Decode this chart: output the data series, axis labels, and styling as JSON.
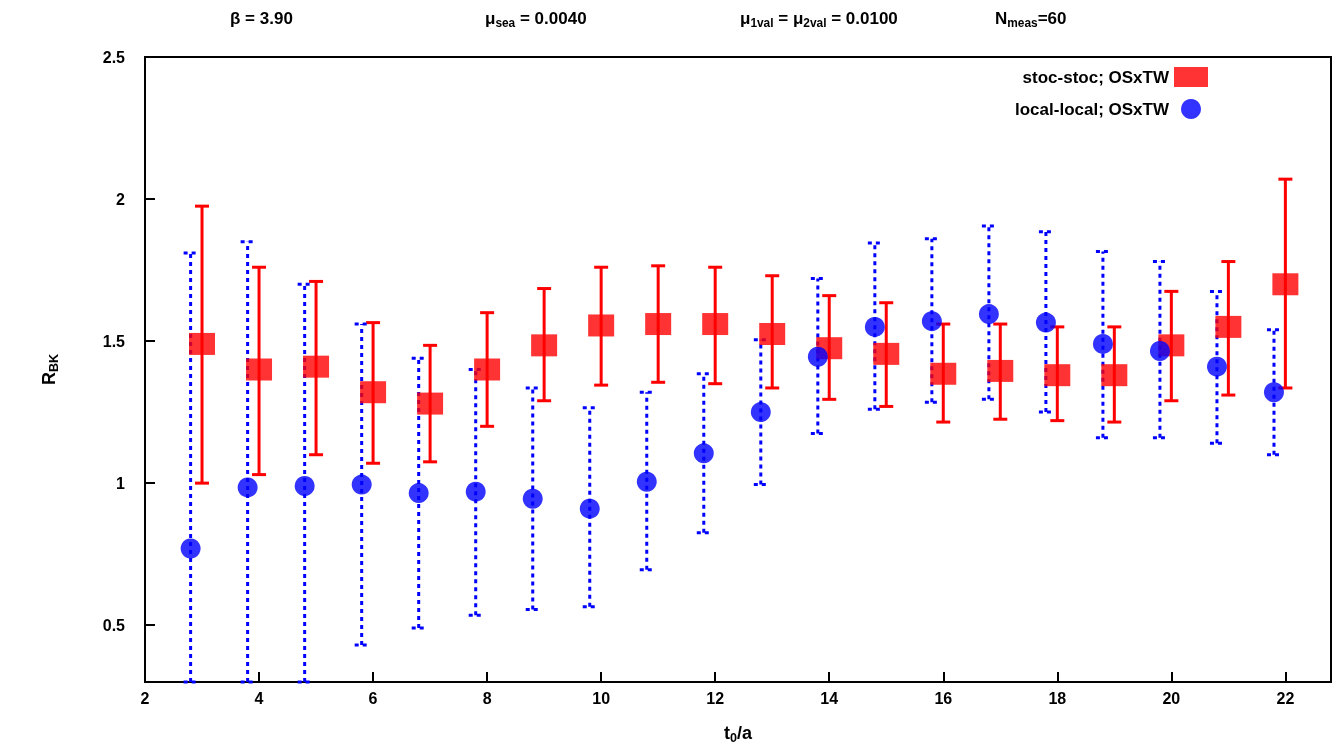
{
  "chart_data": {
    "type": "scatter",
    "annotations": [
      "β = 3.90",
      "μ$_{sea}$ = 0.0040",
      "μ$_{1val}$ = μ$_{2val}$ = 0.0100",
      "N$_{meas}$=60"
    ],
    "xlabel": "t$_{0}$/a",
    "ylabel": "R$_{BK}$",
    "xlim": [
      2,
      22.8
    ],
    "xticks": [
      2,
      4,
      6,
      8,
      10,
      12,
      14,
      16,
      18,
      20,
      22
    ],
    "ylim": [
      0.3,
      2.5
    ],
    "yticks": [
      0.5,
      1,
      1.5,
      2,
      2.5
    ],
    "grid": false,
    "legend": "top right",
    "series": [
      {
        "name": "stoc-stoc; OSxTW",
        "color": "#ff0000",
        "marker": "square",
        "line_style": "solid",
        "x": [
          3,
          4,
          5,
          6,
          7,
          8,
          9,
          10,
          11,
          12,
          13,
          14,
          15,
          16,
          17,
          18,
          19,
          20,
          21,
          22
        ],
        "values": [
          1.49,
          1.4,
          1.41,
          1.32,
          1.28,
          1.4,
          1.485,
          1.555,
          1.56,
          1.56,
          1.525,
          1.475,
          1.455,
          1.385,
          1.395,
          1.38,
          1.38,
          1.485,
          1.55,
          1.7
        ],
        "errors": [
          [
            1.0,
            1.975
          ],
          [
            1.03,
            1.76
          ],
          [
            1.1,
            1.71
          ],
          [
            1.07,
            1.565
          ],
          [
            1.075,
            1.485
          ],
          [
            1.2,
            1.6
          ],
          [
            1.29,
            1.685
          ],
          [
            1.345,
            1.76
          ],
          [
            1.355,
            1.765
          ],
          [
            1.35,
            1.76
          ],
          [
            1.335,
            1.73
          ],
          [
            1.295,
            1.66
          ],
          [
            1.27,
            1.635
          ],
          [
            1.215,
            1.56
          ],
          [
            1.225,
            1.56
          ],
          [
            1.22,
            1.55
          ],
          [
            1.215,
            1.55
          ],
          [
            1.29,
            1.675
          ],
          [
            1.31,
            1.78
          ],
          [
            1.335,
            2.07
          ]
        ]
      },
      {
        "name": "local-local; OSxTW",
        "color": "#0000ff",
        "marker": "circle",
        "line_style": "dashed",
        "x": [
          2.8,
          3.8,
          4.8,
          5.8,
          6.8,
          7.8,
          8.8,
          9.8,
          10.8,
          11.8,
          12.8,
          13.8,
          14.8,
          15.8,
          16.8,
          17.8,
          18.8,
          19.8,
          20.8,
          21.8
        ],
        "values": [
          0.77,
          0.985,
          0.99,
          0.995,
          0.965,
          0.97,
          0.945,
          0.91,
          1.005,
          1.105,
          1.25,
          1.445,
          1.55,
          1.57,
          1.595,
          1.565,
          1.49,
          1.465,
          1.41,
          1.32
        ],
        "errors": [
          [
            0.3,
            1.81
          ],
          [
            0.3,
            1.85
          ],
          [
            0.3,
            1.7
          ],
          [
            0.43,
            1.56
          ],
          [
            0.49,
            1.44
          ],
          [
            0.535,
            1.4
          ],
          [
            0.555,
            1.335
          ],
          [
            0.565,
            1.265
          ],
          [
            0.695,
            1.32
          ],
          [
            0.825,
            1.385
          ],
          [
            0.995,
            1.505
          ],
          [
            1.175,
            1.72
          ],
          [
            1.26,
            1.845
          ],
          [
            1.285,
            1.86
          ],
          [
            1.295,
            1.905
          ],
          [
            1.25,
            1.885
          ],
          [
            1.16,
            1.815
          ],
          [
            1.16,
            1.78
          ],
          [
            1.14,
            1.675
          ],
          [
            1.1,
            1.54
          ]
        ]
      }
    ]
  }
}
